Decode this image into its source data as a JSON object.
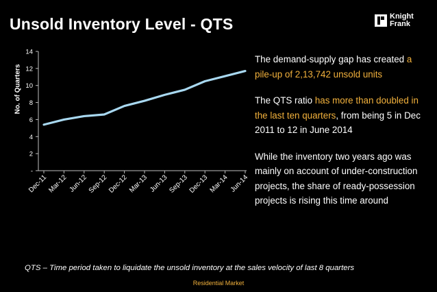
{
  "title": "Unsold Inventory Level - QTS",
  "logo": {
    "line1": "Knight",
    "line2": "Frank"
  },
  "chart_data": {
    "type": "line",
    "ylabel": "No. of Quarters",
    "xlabel": "",
    "categories": [
      "Dec-11",
      "Mar-12",
      "Jun-12",
      "Sep-12",
      "Dec-12",
      "Mar-13",
      "Jun-13",
      "Sep-13",
      "Dec-13",
      "Mar-14",
      "Jun-14"
    ],
    "series": [
      {
        "values": [
          5.4,
          6.0,
          6.4,
          6.6,
          7.6,
          8.2,
          8.9,
          9.5,
          10.5,
          11.1,
          11.7
        ]
      }
    ],
    "ylim": [
      0,
      14
    ],
    "yticks": [
      "-",
      "2",
      "4",
      "6",
      "8",
      "10",
      "12",
      "14"
    ],
    "grid": false,
    "line_color": "#a8d8f0"
  },
  "text": {
    "p1_a": "The demand-supply gap has created ",
    "p1_b": "a pile-up of 2,13,742 unsold units",
    "p2_a": "The QTS ratio ",
    "p2_b": "has more than doubled in the last ten quarters",
    "p2_c": ", from being 5 in Dec 2011 to 12 in June 2014",
    "p3": "While the inventory two years ago was mainly on account of under-construction projects, the share of ready-possession projects is rising this time around"
  },
  "footnote": "QTS – Time period taken to liquidate the unsold inventory at the sales velocity of last 8 quarters",
  "footer": "Residential Market",
  "colors": {
    "accent": "#f2b13c",
    "background": "#000000",
    "text": "#ffffff"
  }
}
